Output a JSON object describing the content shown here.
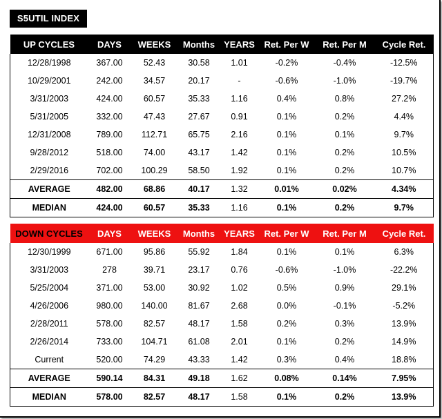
{
  "title": "S5UTIL INDEX",
  "columns": [
    "DAYS",
    "WEEKS",
    "Months",
    "YEARS",
    "Ret. Per W",
    "Ret. Per M",
    "Cycle Ret."
  ],
  "up": {
    "header": "UP CYCLES",
    "rows": [
      [
        "12/28/1998",
        "367.00",
        "52.43",
        "30.58",
        "1.01",
        "-0.2%",
        "-0.4%",
        "-12.5%"
      ],
      [
        "10/29/2001",
        "242.00",
        "34.57",
        "20.17",
        "-",
        "-0.6%",
        "-1.0%",
        "-19.7%"
      ],
      [
        "3/31/2003",
        "424.00",
        "60.57",
        "35.33",
        "1.16",
        "0.4%",
        "0.8%",
        "27.2%"
      ],
      [
        "5/31/2005",
        "332.00",
        "47.43",
        "27.67",
        "0.91",
        "0.1%",
        "0.2%",
        "4.4%"
      ],
      [
        "12/31/2008",
        "789.00",
        "112.71",
        "65.75",
        "2.16",
        "0.1%",
        "0.1%",
        "9.7%"
      ],
      [
        "9/28/2012",
        "518.00",
        "74.00",
        "43.17",
        "1.42",
        "0.1%",
        "0.2%",
        "10.5%"
      ],
      [
        "2/29/2016",
        "702.00",
        "100.29",
        "58.50",
        "1.92",
        "0.1%",
        "0.2%",
        "10.7%"
      ]
    ],
    "average": [
      "AVERAGE",
      "482.00",
      "68.86",
      "40.17",
      "1.32",
      "0.01%",
      "0.02%",
      "4.34%"
    ],
    "median": [
      "MEDIAN",
      "424.00",
      "60.57",
      "35.33",
      "1.16",
      "0.1%",
      "0.2%",
      "9.7%"
    ]
  },
  "down": {
    "header": "DOWN CYCLES",
    "rows": [
      [
        "12/30/1999",
        "671.00",
        "95.86",
        "55.92",
        "1.84",
        "0.1%",
        "0.1%",
        "6.3%"
      ],
      [
        "3/31/2003",
        "278",
        "39.71",
        "23.17",
        "0.76",
        "-0.6%",
        "-1.0%",
        "-22.2%"
      ],
      [
        "5/25/2004",
        "371.00",
        "53.00",
        "30.92",
        "1.02",
        "0.5%",
        "0.9%",
        "29.1%"
      ],
      [
        "4/26/2006",
        "980.00",
        "140.00",
        "81.67",
        "2.68",
        "0.0%",
        "-0.1%",
        "-5.2%"
      ],
      [
        "2/28/2011",
        "578.00",
        "82.57",
        "48.17",
        "1.58",
        "0.2%",
        "0.3%",
        "13.9%"
      ],
      [
        "2/26/2014",
        "733.00",
        "104.71",
        "61.08",
        "2.01",
        "0.1%",
        "0.2%",
        "14.9%"
      ],
      [
        "Current",
        "520.00",
        "74.29",
        "43.33",
        "1.42",
        "0.3%",
        "0.4%",
        "18.8%"
      ]
    ],
    "average": [
      "AVERAGE",
      "590.14",
      "84.31",
      "49.18",
      "1.62",
      "0.08%",
      "0.14%",
      "7.95%"
    ],
    "median": [
      "MEDIAN",
      "578.00",
      "82.57",
      "48.17",
      "1.58",
      "0.1%",
      "0.2%",
      "13.9%"
    ]
  },
  "colors": {
    "up_header_bg": "#000000",
    "down_header_bg": "#ee1111",
    "header_text": "#ffffff"
  }
}
